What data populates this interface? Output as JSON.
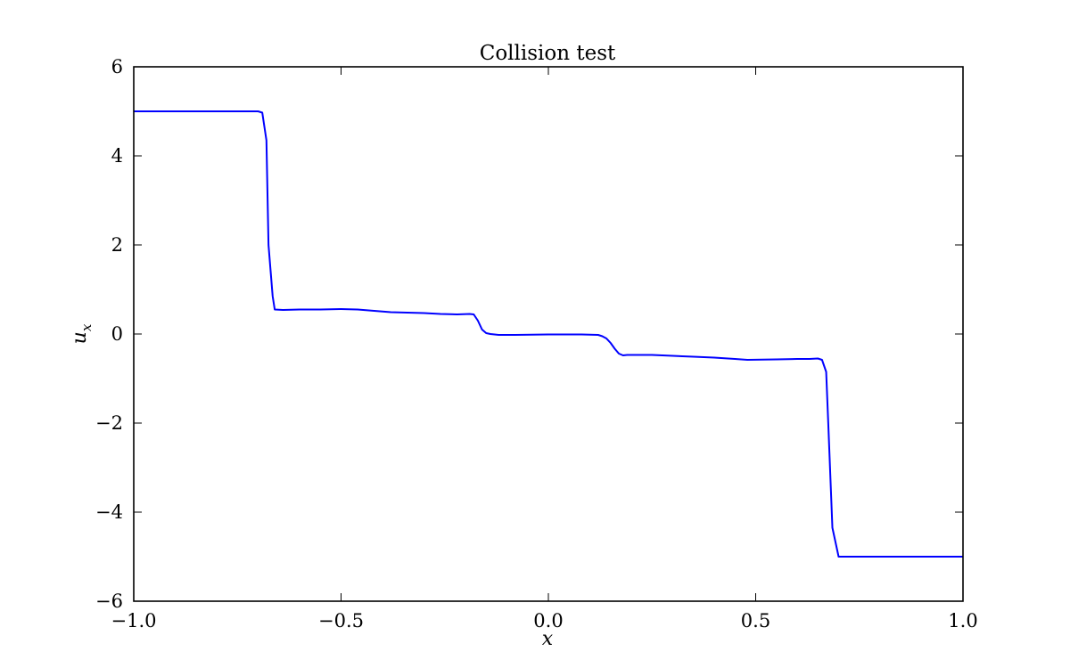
{
  "chart_data": {
    "type": "line",
    "title": "Collision test",
    "xlabel": "x",
    "ylabel": {
      "main": "u",
      "sub": "x"
    },
    "xlim": [
      -1.0,
      1.0
    ],
    "ylim": [
      -6,
      6
    ],
    "xticks": [
      {
        "value": -1.0,
        "label": "−1.0"
      },
      {
        "value": -0.5,
        "label": "−0.5"
      },
      {
        "value": 0.0,
        "label": "0.0"
      },
      {
        "value": 0.5,
        "label": "0.5"
      },
      {
        "value": 1.0,
        "label": "1.0"
      }
    ],
    "yticks": [
      {
        "value": -6,
        "label": "−6"
      },
      {
        "value": -4,
        "label": "−4"
      },
      {
        "value": -2,
        "label": "−2"
      },
      {
        "value": 0,
        "label": "0"
      },
      {
        "value": 2,
        "label": "2"
      },
      {
        "value": 4,
        "label": "4"
      },
      {
        "value": 6,
        "label": "6"
      }
    ],
    "grid": false,
    "legend": "none",
    "series": [
      {
        "color": "#0000ff",
        "x": [
          -1.0,
          -0.8,
          -0.7,
          -0.69,
          -0.68,
          -0.675,
          -0.665,
          -0.66,
          -0.64,
          -0.6,
          -0.55,
          -0.5,
          -0.46,
          -0.42,
          -0.38,
          -0.34,
          -0.3,
          -0.26,
          -0.22,
          -0.19,
          -0.18,
          -0.17,
          -0.16,
          -0.15,
          -0.14,
          -0.13,
          -0.12,
          -0.08,
          0.0,
          0.08,
          0.12,
          0.13,
          0.14,
          0.15,
          0.16,
          0.17,
          0.18,
          0.19,
          0.25,
          0.3,
          0.35,
          0.4,
          0.45,
          0.48,
          0.55,
          0.6,
          0.63,
          0.65,
          0.66,
          0.67,
          0.675,
          0.685,
          0.7,
          0.75,
          1.0
        ],
        "y": [
          5.0,
          5.0,
          5.0,
          4.97,
          4.35,
          2.0,
          0.85,
          0.55,
          0.54,
          0.55,
          0.55,
          0.56,
          0.55,
          0.52,
          0.49,
          0.48,
          0.47,
          0.45,
          0.44,
          0.45,
          0.44,
          0.3,
          0.1,
          0.02,
          0.0,
          -0.01,
          -0.02,
          -0.02,
          -0.01,
          -0.01,
          -0.02,
          -0.05,
          -0.1,
          -0.2,
          -0.33,
          -0.44,
          -0.48,
          -0.47,
          -0.47,
          -0.49,
          -0.51,
          -0.53,
          -0.56,
          -0.58,
          -0.57,
          -0.56,
          -0.56,
          -0.55,
          -0.58,
          -0.85,
          -2.0,
          -4.35,
          -5.0,
          -5.0,
          -5.0
        ]
      }
    ]
  }
}
